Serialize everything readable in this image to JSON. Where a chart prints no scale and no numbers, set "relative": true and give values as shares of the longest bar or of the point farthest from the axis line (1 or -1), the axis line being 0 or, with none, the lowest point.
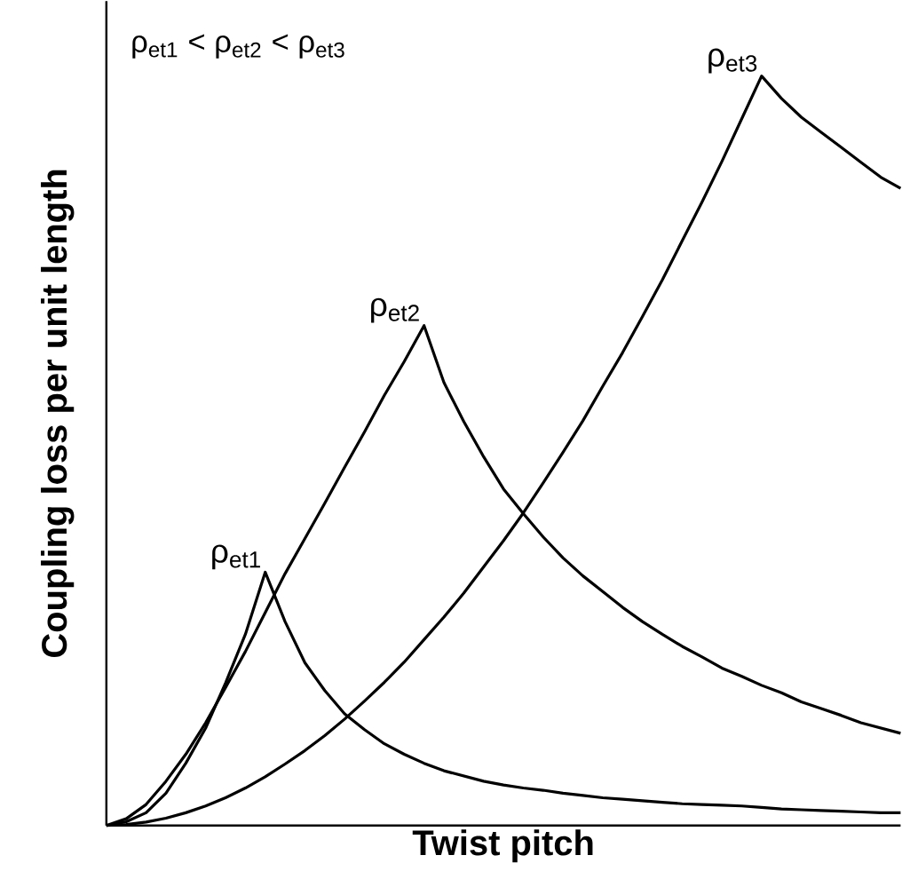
{
  "chart_data": {
    "type": "line",
    "relative": true,
    "xlabel": "Twist pitch",
    "ylabel": "Coupling loss per unit length",
    "annotations": [
      "ρ$_{et1}$ < ρ$_{et2}$ < ρ$_{et3}$"
    ],
    "categories": [
      null,
      null,
      null,
      null,
      null,
      null,
      null,
      null,
      null,
      null,
      null,
      null,
      null,
      null,
      null,
      null,
      null,
      null,
      null,
      null,
      null,
      null,
      null,
      null,
      null,
      null,
      null,
      null,
      null,
      null,
      null,
      null,
      null,
      null,
      null,
      null,
      null,
      null,
      null,
      null,
      null
    ],
    "line_style": "solid",
    "marker": "none",
    "series": [
      {
        "name": "ρ$_{et1}$",
        "color": "#000000",
        "values": [
          0,
          0.005,
          0.017,
          0.043,
          0.083,
          0.13,
          0.19,
          0.255,
          0.338,
          0.272,
          0.217,
          0.18,
          0.149,
          0.128,
          0.109,
          0.095,
          0.083,
          0.073,
          0.066,
          0.059,
          0.054,
          0.05,
          0.047,
          0.043,
          0.04,
          0.037,
          0.035,
          0.033,
          0.031,
          0.029,
          0.028,
          0.027,
          0.026,
          0.024,
          0.022,
          0.021,
          0.02,
          0.019,
          0.018,
          0.017,
          0.017
        ]
      },
      {
        "name": "ρ$_{et2}$",
        "color": "#000000",
        "values": [
          0,
          0.009,
          0.028,
          0.059,
          0.095,
          0.137,
          0.184,
          0.232,
          0.284,
          0.336,
          0.383,
          0.43,
          0.478,
          0.525,
          0.574,
          0.619,
          0.667,
          0.591,
          0.539,
          0.492,
          0.449,
          0.416,
          0.385,
          0.357,
          0.333,
          0.312,
          0.291,
          0.272,
          0.255,
          0.239,
          0.225,
          0.21,
          0.199,
          0.187,
          0.177,
          0.165,
          0.156,
          0.147,
          0.137,
          0.13,
          0.123
        ]
      },
      {
        "name": "ρ$_{et3}$",
        "color": "#000000",
        "values": [
          0,
          0.0012,
          0.0045,
          0.0098,
          0.017,
          0.026,
          0.037,
          0.05,
          0.065,
          0.082,
          0.1,
          0.12,
          0.142,
          0.166,
          0.191,
          0.218,
          0.248,
          0.278,
          0.31,
          0.345,
          0.38,
          0.417,
          0.457,
          0.498,
          0.54,
          0.586,
          0.631,
          0.679,
          0.728,
          0.78,
          0.832,
          0.886,
          0.943,
          1,
          0.97,
          0.945,
          0.925,
          0.905,
          0.885,
          0.865,
          0.85
        ]
      }
    ]
  }
}
